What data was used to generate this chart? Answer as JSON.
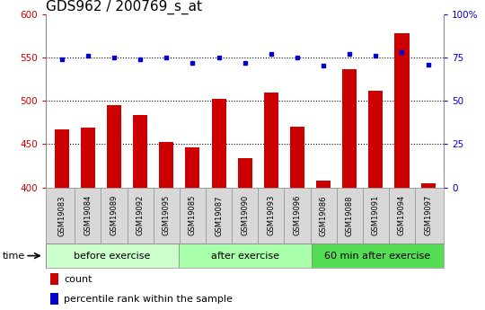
{
  "title": "GDS962 / 200769_s_at",
  "categories": [
    "GSM19083",
    "GSM19084",
    "GSM19089",
    "GSM19092",
    "GSM19095",
    "GSM19085",
    "GSM19087",
    "GSM19090",
    "GSM19093",
    "GSM19096",
    "GSM19086",
    "GSM19088",
    "GSM19091",
    "GSM19094",
    "GSM19097"
  ],
  "counts": [
    467,
    469,
    495,
    484,
    452,
    446,
    502,
    434,
    509,
    470,
    408,
    536,
    511,
    578,
    405
  ],
  "percentiles": [
    74,
    76,
    75,
    74,
    75,
    72,
    75,
    72,
    77,
    75,
    70,
    77,
    76,
    78,
    71
  ],
  "groups": [
    {
      "label": "before exercise",
      "start": 0,
      "end": 5
    },
    {
      "label": "after exercise",
      "start": 5,
      "end": 10
    },
    {
      "label": "60 min after exercise",
      "start": 10,
      "end": 15
    }
  ],
  "group_colors": [
    "#ccffcc",
    "#aaffaa",
    "#55dd55"
  ],
  "ylim_left": [
    400,
    600
  ],
  "ylim_right": [
    0,
    100
  ],
  "yticks_left": [
    400,
    450,
    500,
    550,
    600
  ],
  "yticks_right": [
    0,
    25,
    50,
    75,
    100
  ],
  "ytick_right_labels": [
    "0",
    "25",
    "50",
    "75",
    "100%"
  ],
  "bar_color": "#cc0000",
  "dot_color": "#0000cc",
  "bar_width": 0.55,
  "bg_color": "#ffffff",
  "plot_bg": "#ffffff",
  "xtick_bg": "#d8d8d8",
  "tick_label_color_left": "#cc0000",
  "tick_label_color_right": "#0000cc",
  "title_fontsize": 11,
  "axis_fontsize": 7.5,
  "legend_fontsize": 8,
  "group_label_fontsize": 8,
  "xtick_fontsize": 6,
  "time_label": "time",
  "legend_items": [
    {
      "label": "count",
      "color": "#cc0000"
    },
    {
      "label": "percentile rank within the sample",
      "color": "#0000cc"
    }
  ]
}
